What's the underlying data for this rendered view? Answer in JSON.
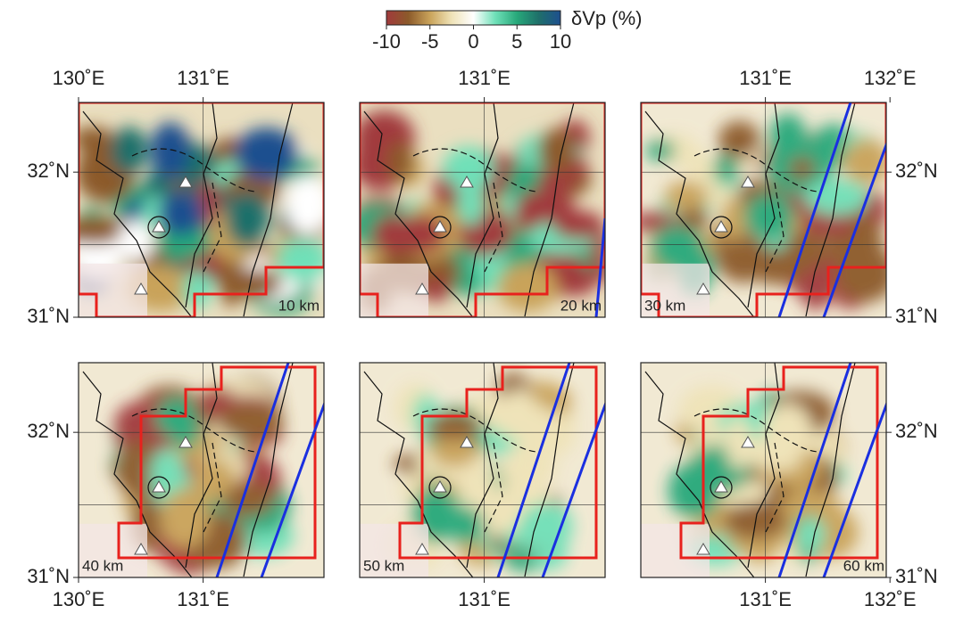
{
  "colorbar": {
    "label": "δVp (%)",
    "lim": [
      -10,
      10
    ],
    "ticks": [
      -10,
      -5,
      0,
      5,
      10
    ],
    "colors": [
      "#a13a3c",
      "#8c5a2a",
      "#c9a35a",
      "#efe3b8",
      "#ffffff",
      "#6fe0b8",
      "#27a87a",
      "#1f6f6a",
      "#1d4f8f"
    ]
  },
  "map": {
    "xlim": [
      130,
      131.97
    ],
    "ylim": [
      31,
      32.48
    ]
  },
  "panels": [
    {
      "depth": "10 km",
      "top_ticks": [
        {
          "value": 130,
          "label": "130˚E"
        },
        {
          "value": 131,
          "label": "131˚E"
        }
      ],
      "left_ticks": [
        {
          "value": 32,
          "label": "32˚N"
        },
        {
          "value": 31,
          "label": "31˚N"
        }
      ]
    },
    {
      "depth": "20 km",
      "top_ticks": [
        {
          "value": 131,
          "label": "131˚E"
        }
      ]
    },
    {
      "depth": "30 km",
      "top_ticks": [
        {
          "value": 131,
          "label": "131˚E"
        },
        {
          "value": 132,
          "label": "132˚E"
        }
      ],
      "right_ticks": [
        {
          "value": 32,
          "label": "32˚N"
        },
        {
          "value": 31,
          "label": "31˚N"
        }
      ]
    },
    {
      "depth": "40 km",
      "bottom_ticks": [
        {
          "value": 130,
          "label": "130˚E"
        },
        {
          "value": 131,
          "label": "131˚E"
        }
      ],
      "left_ticks": [
        {
          "value": 32,
          "label": "32˚N"
        },
        {
          "value": 31,
          "label": "31˚N"
        }
      ]
    },
    {
      "depth": "50 km",
      "bottom_ticks": [
        {
          "value": 131,
          "label": "131˚E"
        }
      ]
    },
    {
      "depth": "60 km",
      "bottom_ticks": [
        {
          "value": 131,
          "label": "131˚E"
        },
        {
          "value": 132,
          "label": "132˚E"
        }
      ],
      "right_ticks": [
        {
          "value": 32,
          "label": "32˚N"
        },
        {
          "value": 31,
          "label": "31˚N"
        }
      ]
    }
  ]
}
